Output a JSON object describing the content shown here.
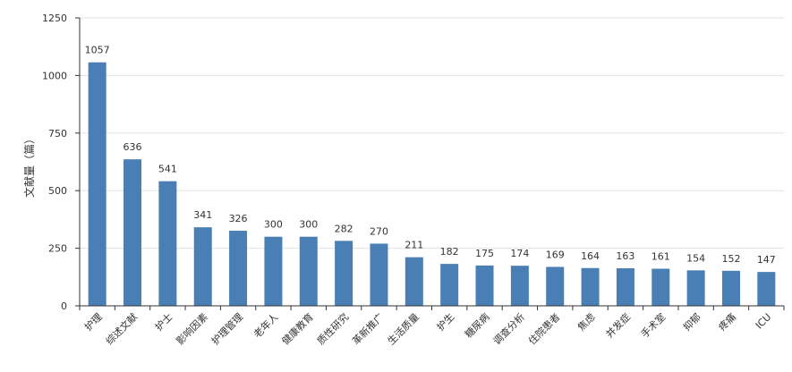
{
  "chart_data": {
    "type": "bar",
    "title": "",
    "xlabel": "",
    "ylabel": "文献量（篇）",
    "ylim": [
      0,
      1250
    ],
    "yticks": [
      0,
      250,
      500,
      750,
      1000,
      1250
    ],
    "grid": true,
    "legend": "none",
    "bar_color": "#4a7fb5",
    "categories": [
      "护理",
      "综述文献",
      "护士",
      "影响因素",
      "护理管理",
      "老年人",
      "健康教育",
      "质性研究",
      "革新推广",
      "生活质量",
      "护生",
      "糖尿病",
      "调查分析",
      "住院患者",
      "焦虑",
      "并发症",
      "手术室",
      "抑郁",
      "疼痛",
      "ICU"
    ],
    "values": [
      1057,
      636,
      541,
      341,
      326,
      300,
      300,
      282,
      270,
      211,
      182,
      175,
      174,
      169,
      164,
      163,
      161,
      154,
      152,
      147
    ]
  }
}
